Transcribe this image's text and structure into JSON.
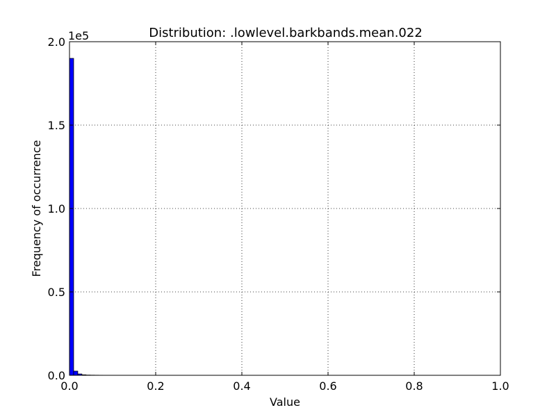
{
  "chart_data": {
    "type": "bar",
    "title": "Distribution: .lowlevel.barkbands.mean.022",
    "xlabel": "Value",
    "ylabel": "Frequency of occurrence",
    "y_scale_label": "1e5",
    "xlim": [
      0.0,
      1.0
    ],
    "ylim": [
      0,
      200000
    ],
    "x_ticks": [
      "0.0",
      "0.2",
      "0.4",
      "0.6",
      "0.8",
      "1.0"
    ],
    "x_tick_values": [
      0.0,
      0.2,
      0.4,
      0.6,
      0.8,
      1.0
    ],
    "y_ticks": [
      "0.0",
      "0.5",
      "1.0",
      "1.5",
      "2.0"
    ],
    "y_tick_values": [
      0,
      50000,
      100000,
      150000,
      200000
    ],
    "grid": true,
    "bar_color": "#0000ff",
    "bin_start": 0.0,
    "bin_width": 0.0096,
    "values": [
      190000,
      2500,
      800,
      300,
      150,
      100,
      70,
      50,
      40,
      30,
      25,
      20,
      18,
      15,
      12,
      10,
      9,
      8,
      7,
      6,
      5,
      5,
      4,
      4,
      3,
      3,
      3,
      2,
      2,
      2,
      2,
      2,
      1,
      1,
      1,
      1,
      1,
      1,
      1,
      1,
      1,
      1,
      1,
      1,
      1,
      1,
      1,
      1,
      1,
      1,
      1,
      1,
      1,
      1,
      1,
      1,
      1,
      1,
      1,
      1,
      1,
      1,
      1,
      1,
      1,
      1,
      1,
      1,
      1,
      1,
      1,
      1,
      1,
      1,
      1,
      1,
      1,
      1,
      1,
      1,
      1,
      1,
      1,
      1,
      1,
      1,
      1,
      1,
      1,
      1,
      1,
      1,
      1,
      1,
      1,
      1,
      1,
      1,
      1,
      1
    ]
  }
}
